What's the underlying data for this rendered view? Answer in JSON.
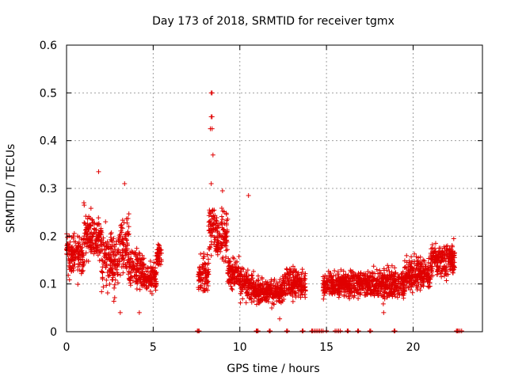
{
  "chart_data": {
    "type": "scatter",
    "title": "Day 173 of 2018, SRMTID for receiver tgmx",
    "xlabel": "GPS time / hours",
    "ylabel": "SRMTID / TECUs",
    "xlim": [
      0,
      24
    ],
    "ylim": [
      0,
      0.6
    ],
    "xticks": [
      "0",
      "5",
      "10",
      "15",
      "20"
    ],
    "yticks": [
      "0",
      "0.1",
      "0.2",
      "0.3",
      "0.4",
      "0.5",
      "0.6"
    ],
    "grid": true,
    "marker": "plus",
    "color": "#e00000",
    "series": [
      {
        "name": "SRMTID",
        "segments": [
          {
            "x_start": 0.0,
            "x_end": 1.0,
            "y_mean": 0.16,
            "y_spread": 0.05
          },
          {
            "x_start": 1.0,
            "x_end": 2.0,
            "y_mean": 0.2,
            "y_spread": 0.06
          },
          {
            "x_start": 2.0,
            "x_end": 3.0,
            "y_mean": 0.15,
            "y_spread": 0.07
          },
          {
            "x_start": 3.0,
            "x_end": 3.6,
            "y_mean": 0.18,
            "y_spread": 0.07
          },
          {
            "x_start": 3.6,
            "x_end": 4.5,
            "y_mean": 0.13,
            "y_spread": 0.05
          },
          {
            "x_start": 4.5,
            "x_end": 5.2,
            "y_mean": 0.11,
            "y_spread": 0.04
          },
          {
            "x_start": 5.2,
            "x_end": 5.5,
            "y_mean": 0.16,
            "y_spread": 0.03
          },
          {
            "x_start": 7.6,
            "x_end": 8.2,
            "y_mean": 0.12,
            "y_spread": 0.05
          },
          {
            "x_start": 8.2,
            "x_end": 8.6,
            "y_mean": 0.22,
            "y_spread": 0.07
          },
          {
            "x_start": 8.6,
            "x_end": 9.3,
            "y_mean": 0.2,
            "y_spread": 0.06
          },
          {
            "x_start": 9.3,
            "x_end": 10.0,
            "y_mean": 0.12,
            "y_spread": 0.04
          },
          {
            "x_start": 10.0,
            "x_end": 10.8,
            "y_mean": 0.1,
            "y_spread": 0.04
          },
          {
            "x_start": 10.8,
            "x_end": 12.5,
            "y_mean": 0.085,
            "y_spread": 0.03
          },
          {
            "x_start": 12.5,
            "x_end": 13.8,
            "y_mean": 0.1,
            "y_spread": 0.04
          },
          {
            "x_start": 14.8,
            "x_end": 16.0,
            "y_mean": 0.1,
            "y_spread": 0.03
          },
          {
            "x_start": 16.0,
            "x_end": 18.0,
            "y_mean": 0.1,
            "y_spread": 0.035
          },
          {
            "x_start": 18.0,
            "x_end": 19.5,
            "y_mean": 0.1,
            "y_spread": 0.04
          },
          {
            "x_start": 19.5,
            "x_end": 21.0,
            "y_mean": 0.12,
            "y_spread": 0.04
          },
          {
            "x_start": 21.0,
            "x_end": 22.4,
            "y_mean": 0.15,
            "y_spread": 0.04
          }
        ],
        "outliers": [
          {
            "x": 8.35,
            "y": 0.5
          },
          {
            "x": 8.4,
            "y": 0.5
          },
          {
            "x": 8.35,
            "y": 0.45
          },
          {
            "x": 8.4,
            "y": 0.45
          },
          {
            "x": 8.3,
            "y": 0.425
          },
          {
            "x": 8.4,
            "y": 0.425
          },
          {
            "x": 8.45,
            "y": 0.37
          },
          {
            "x": 8.35,
            "y": 0.31
          },
          {
            "x": 1.85,
            "y": 0.335
          },
          {
            "x": 3.35,
            "y": 0.31
          },
          {
            "x": 10.5,
            "y": 0.285
          },
          {
            "x": 9.0,
            "y": 0.295
          },
          {
            "x": 3.1,
            "y": 0.04
          },
          {
            "x": 4.2,
            "y": 0.04
          },
          {
            "x": 12.3,
            "y": 0.027
          },
          {
            "x": 18.3,
            "y": 0.04
          }
        ]
      }
    ],
    "zero_points_x": [
      7.55,
      7.6,
      7.65,
      10.95,
      11.0,
      11.05,
      11.7,
      11.75,
      12.7,
      12.75,
      13.6,
      13.65,
      14.15,
      14.2,
      14.3,
      14.4,
      14.5,
      14.6,
      14.7,
      14.8,
      15.0,
      15.5,
      15.6,
      15.7,
      15.8,
      16.2,
      16.25,
      16.8,
      16.85,
      17.5,
      17.55,
      18.9,
      18.95,
      22.5,
      22.55,
      22.6,
      22.7,
      22.8
    ]
  }
}
